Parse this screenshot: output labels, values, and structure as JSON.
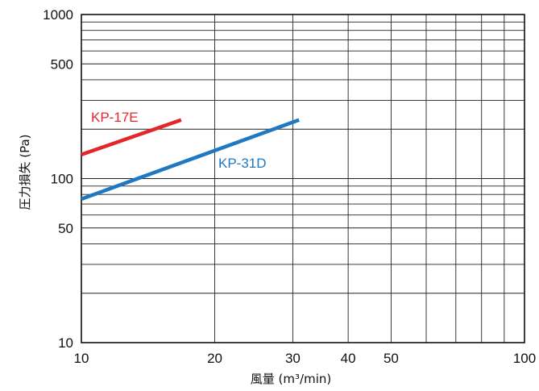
{
  "chart_data": {
    "type": "line",
    "xscale": "log",
    "yscale": "log",
    "xlim": [
      10,
      100
    ],
    "ylim": [
      10,
      1000
    ],
    "xlabel": "風量 (m³/min)",
    "ylabel": "圧力損失 (Pa)",
    "grid": true,
    "x_ticks": [
      10,
      20,
      30,
      40,
      50,
      100
    ],
    "x_tick_labels": [
      "10",
      "20",
      "30",
      "40",
      "50",
      "100"
    ],
    "y_tick_labels": [
      "10",
      "50",
      "100",
      "500",
      "1000"
    ],
    "series": [
      {
        "name": "KP-17E",
        "color": "#e4262c",
        "x": [
          10,
          16.8
        ],
        "y": [
          140,
          228
        ]
      },
      {
        "name": "KP-31D",
        "color": "#1f78c1",
        "x": [
          10,
          31
        ],
        "y": [
          75,
          228
        ]
      }
    ]
  }
}
